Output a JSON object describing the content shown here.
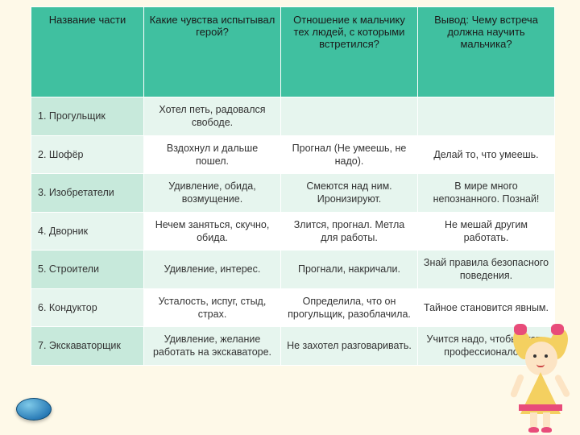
{
  "table": {
    "headers": [
      "Название части",
      "Какие чувства испытывал герой?",
      "Отношение к мальчику тех людей, с которыми встретился?",
      "Вывод: Чему встреча должна научить мальчика?"
    ],
    "rows": [
      [
        "1. Прогульщик",
        "Хотел петь, радовался свободе.",
        "",
        ""
      ],
      [
        "2. Шофёр",
        "Вздохнул и дальше пошел.",
        "Прогнал (Не умеешь, не надо).",
        "Делай то, что умеешь."
      ],
      [
        "3. Изобретатели",
        "Удивление, обида, возмущение.",
        "Смеются над ним. Иронизируют.",
        "В мире много непознанного. Познай!"
      ],
      [
        "4. Дворник",
        "Нечем заняться, скучно, обида.",
        "Злится, прогнал. Метла для работы.",
        "Не мешай другим работать."
      ],
      [
        "5. Строители",
        "Удивление, интерес.",
        "Прогнали, накричали.",
        "Знай правила безопасного поведения."
      ],
      [
        "6. Кондуктор",
        "Усталость, испуг, стыд, страх.",
        "Определила, что он прогульщик, разоблачила.",
        "Тайное становится явным."
      ],
      [
        "7. Экскаваторщик",
        "Удивление, желание работать на экскаваторе.",
        "Не захотел разговаривать.",
        "Учится надо, чтобы стать профессионалом."
      ]
    ]
  }
}
